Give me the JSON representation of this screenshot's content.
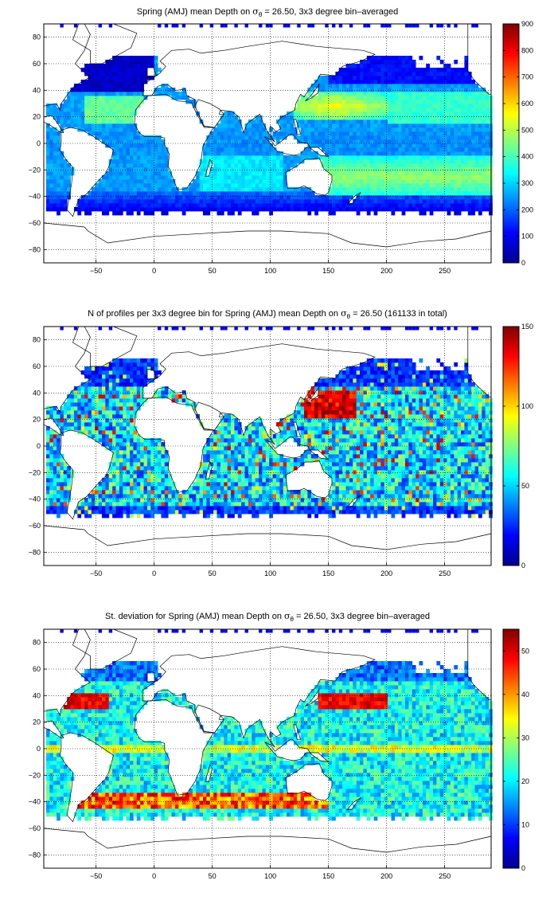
{
  "figure": {
    "colors": {
      "jet": [
        "#00008f",
        "#0000ff",
        "#0080ff",
        "#00ffff",
        "#80ff80",
        "#ffff00",
        "#ff8000",
        "#ff0000",
        "#800000"
      ],
      "land": "#ffffff",
      "coast": "#000000",
      "grid": "#000000"
    }
  },
  "chart_data": [
    {
      "type": "heatmap",
      "title_pre": "Spring (AMJ) mean Depth on ",
      "sigma": "σ",
      "sigma_sub": "θ",
      "title_post": " = 26.50, 3x3 degree bin–averaged",
      "xlim": [
        -95,
        290
      ],
      "ylim": [
        -90,
        90
      ],
      "x_ticks": [
        -50,
        0,
        50,
        100,
        150,
        200,
        250
      ],
      "x_tick_labels": [
        "−50",
        "0",
        "50",
        "100",
        "150",
        "200",
        "250"
      ],
      "y_ticks": [
        80,
        60,
        40,
        20,
        0,
        -20,
        -40,
        -60,
        -80
      ],
      "y_tick_labels": [
        "80",
        "60",
        "40",
        "20",
        "0",
        "−20",
        "−40",
        "−60",
        "−80"
      ],
      "colorbar": {
        "min": 0,
        "max": 900,
        "ticks": [
          0,
          100,
          200,
          300,
          400,
          500,
          600,
          700,
          800,
          900
        ],
        "tick_labels": [
          "0",
          "100",
          "200",
          "300",
          "400",
          "500",
          "600",
          "700",
          "800",
          "900"
        ]
      },
      "field": "mean_depth",
      "grid": true
    },
    {
      "type": "heatmap",
      "title_pre": "N of profiles per 3x3 degree bin for Spring (AMJ) mean Depth on ",
      "sigma": "σ",
      "sigma_sub": "θ",
      "title_post": " = 26.50 (161133 in total)",
      "xlim": [
        -95,
        290
      ],
      "ylim": [
        -90,
        90
      ],
      "x_ticks": [
        -50,
        0,
        50,
        100,
        150,
        200,
        250
      ],
      "x_tick_labels": [
        "−50",
        "0",
        "50",
        "100",
        "150",
        "200",
        "250"
      ],
      "y_ticks": [
        80,
        60,
        40,
        20,
        0,
        -20,
        -40,
        -60,
        -80
      ],
      "y_tick_labels": [
        "80",
        "60",
        "40",
        "20",
        "0",
        "−20",
        "−40",
        "−60",
        "−80"
      ],
      "colorbar": {
        "min": 0,
        "max": 150,
        "ticks": [
          0,
          50,
          100,
          150
        ],
        "tick_labels": [
          "0",
          "50",
          "100",
          "150"
        ]
      },
      "field": "profile_count",
      "grid": true
    },
    {
      "type": "heatmap",
      "title_pre": "St. deviation for Spring (AMJ) mean Depth on ",
      "sigma": "σ",
      "sigma_sub": "θ",
      "title_post": " = 26.50, 3x3 degree bin–averaged",
      "xlim": [
        -95,
        290
      ],
      "ylim": [
        -90,
        90
      ],
      "x_ticks": [
        -50,
        0,
        50,
        100,
        150,
        200,
        250
      ],
      "x_tick_labels": [
        "−50",
        "0",
        "50",
        "100",
        "150",
        "200",
        "250"
      ],
      "y_ticks": [
        80,
        60,
        40,
        20,
        0,
        -20,
        -40,
        -60,
        -80
      ],
      "y_tick_labels": [
        "80",
        "60",
        "40",
        "20",
        "0",
        "−20",
        "−40",
        "−60",
        "−80"
      ],
      "colorbar": {
        "min": 0,
        "max": 55,
        "ticks": [
          0,
          10,
          20,
          30,
          40,
          50
        ],
        "tick_labels": [
          "0",
          "10",
          "20",
          "30",
          "40",
          "50"
        ]
      },
      "field": "std_depth",
      "grid": true
    }
  ]
}
